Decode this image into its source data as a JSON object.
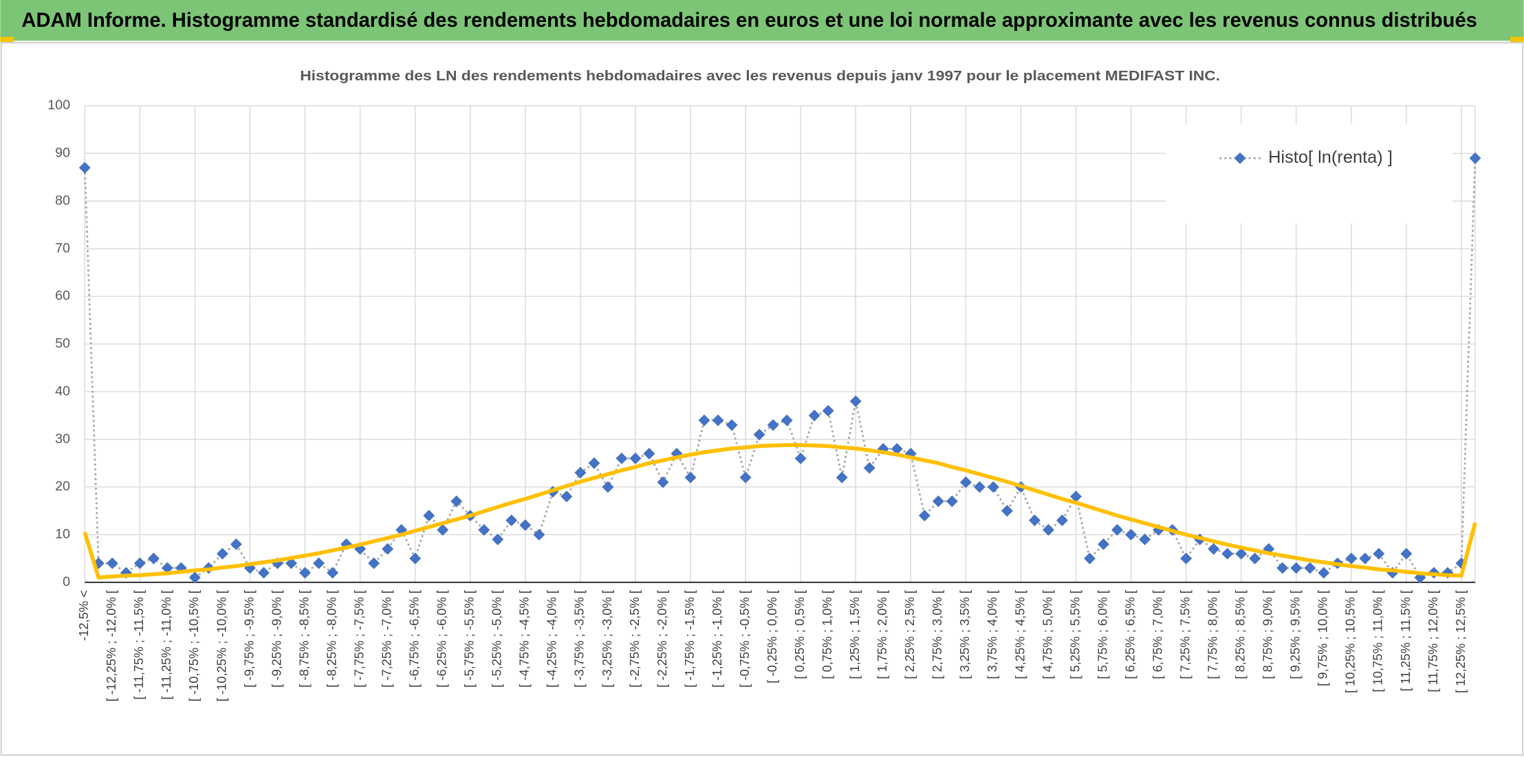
{
  "chart_data": {
    "type": "line",
    "header": "ADAM Informe. Histogramme standardisé des rendements hebdomadaires en euros et une loi normale approximante avec les revenus connus distribués",
    "title": "Histogramme des LN des rendements hebdomadaires avec les revenus depuis janv 1997 pour le placement MEDIFAST INC.",
    "categories": [
      "-12,5% <",
      null,
      "[ -12,25% ; -12,0% [",
      null,
      "[ -11,75% ; -11,5% [",
      null,
      "[ -11,25% ; -11,0% [",
      null,
      "[ -10,75% ; -10,5% [",
      null,
      "[ -10,25% ; -10,0% [",
      null,
      "[ -9,75% ; -9,5% [",
      null,
      "[ -9,25% ; -9,0% [",
      null,
      "[ -8,75% ; -8,5% [",
      null,
      "[ -8,25% ; -8,0% [",
      null,
      "[ -7,75% ; -7,5% [",
      null,
      "[ -7,25% ; -7,0% [",
      null,
      "[ -6,75% ; -6,5% [",
      null,
      "[ -6,25% ; -6,0% [",
      null,
      "[ -5,75% ; -5,5% [",
      null,
      "[ -5,25% ; -5,0% [",
      null,
      "[ -4,75% ; -4,5% [",
      null,
      "[ -4,25% ; -4,0% [",
      null,
      "[ -3,75% ; -3,5% [",
      null,
      "[ -3,25% ; -3,0% [",
      null,
      "[ -2,75% ; -2,5% [",
      null,
      "[ -2,25% ; -2,0% [",
      null,
      "[ -1,75% ; -1,5% [",
      null,
      "[ -1,25% ; -1,0% [",
      null,
      "[ -0,75% ; -0,5% [",
      null,
      "[ -0,25% ; 0,0% [",
      null,
      "[ 0,25% ; 0,5% [",
      null,
      "[ 0,75% ; 1,0% [",
      null,
      "[ 1,25% ; 1,5% [",
      null,
      "[ 1,75% ; 2,0% [",
      null,
      "[ 2,25% ; 2,5% [",
      null,
      "[ 2,75% ; 3,0% [",
      null,
      "[ 3,25% ; 3,5% [",
      null,
      "[ 3,75% ; 4,0% [",
      null,
      "[ 4,25% ; 4,5% [",
      null,
      "[ 4,75% ; 5,0% [",
      null,
      "[ 5,25% ; 5,5% [",
      null,
      "[ 5,75% ; 6,0% [",
      null,
      "[ 6,25% ; 6,5% [",
      null,
      "[ 6,75% ; 7,0% [",
      null,
      "[ 7,25% ; 7,5% [",
      null,
      "[ 7,75% ; 8,0% [",
      null,
      "[ 8,25% ; 8,5% [",
      null,
      "[ 8,75% ; 9,0% [",
      null,
      "[ 9,25% ; 9,5% [",
      null,
      "[ 9,75% ; 10,0% [",
      null,
      "[ 10,25% ; 10,5% [",
      null,
      "[ 10,75% ; 11,0% [",
      null,
      "[ 11,25% ; 11,5% [",
      null,
      "[ 11,75% ; 12,0% [",
      null,
      "[ 12,25% ; 12,5% [",
      null
    ],
    "series": [
      {
        "name": "Histo[ ln(renta) ]",
        "color": "#4472c4",
        "line_color": "#a6a6a6",
        "marker": "diamond",
        "dashed": true,
        "values": [
          87,
          4,
          4,
          2,
          4,
          5,
          3,
          3,
          1,
          3,
          6,
          8,
          3,
          2,
          4,
          4,
          2,
          4,
          2,
          8,
          7,
          4,
          7,
          11,
          5,
          14,
          11,
          17,
          14,
          11,
          9,
          13,
          12,
          10,
          19,
          18,
          23,
          25,
          20,
          26,
          26,
          27,
          21,
          27,
          22,
          34,
          34,
          33,
          22,
          31,
          33,
          34,
          26,
          35,
          36,
          22,
          38,
          24,
          28,
          28,
          27,
          14,
          17,
          17,
          21,
          20,
          20,
          15,
          20,
          13,
          11,
          13,
          18,
          5,
          8,
          11,
          10,
          9,
          11,
          11,
          5,
          9,
          7,
          6,
          6,
          5,
          7,
          3,
          3,
          3,
          2,
          4,
          5,
          5,
          6,
          2,
          6,
          1,
          2,
          2,
          4,
          89
        ]
      },
      {
        "color": "#ffc000",
        "values": [
          10.5,
          1.0,
          1.2,
          1.4,
          1.5,
          1.7,
          1.9,
          2.2,
          2.5,
          2.7,
          3.1,
          3.4,
          3.8,
          4.2,
          4.6,
          5.1,
          5.6,
          6.1,
          6.7,
          7.3,
          7.9,
          8.6,
          9.3,
          10.0,
          10.8,
          11.6,
          12.4,
          13.2,
          14.0,
          14.9,
          15.8,
          16.7,
          17.5,
          18.4,
          19.3,
          20.2,
          21.1,
          21.9,
          22.7,
          23.5,
          24.2,
          25.0,
          25.6,
          26.2,
          26.8,
          27.3,
          27.7,
          28.1,
          28.3,
          28.6,
          28.7,
          28.8,
          28.8,
          28.7,
          28.6,
          28.3,
          28.1,
          27.7,
          27.3,
          26.8,
          26.2,
          25.6,
          25.0,
          24.2,
          23.5,
          22.7,
          21.9,
          21.1,
          20.2,
          19.3,
          18.4,
          17.5,
          16.7,
          15.8,
          14.9,
          14.0,
          13.2,
          12.4,
          11.6,
          10.8,
          10.0,
          9.3,
          8.6,
          7.9,
          7.3,
          6.7,
          6.1,
          5.6,
          5.1,
          4.6,
          4.2,
          3.8,
          3.4,
          3.1,
          2.7,
          2.5,
          2.2,
          1.9,
          1.7,
          1.5,
          1.4,
          12.5
        ]
      }
    ],
    "ylim": [
      0,
      100
    ],
    "yticks": [
      0,
      10,
      20,
      30,
      40,
      50,
      60,
      70,
      80,
      90,
      100
    ],
    "grid": true,
    "legend": "upper right"
  }
}
